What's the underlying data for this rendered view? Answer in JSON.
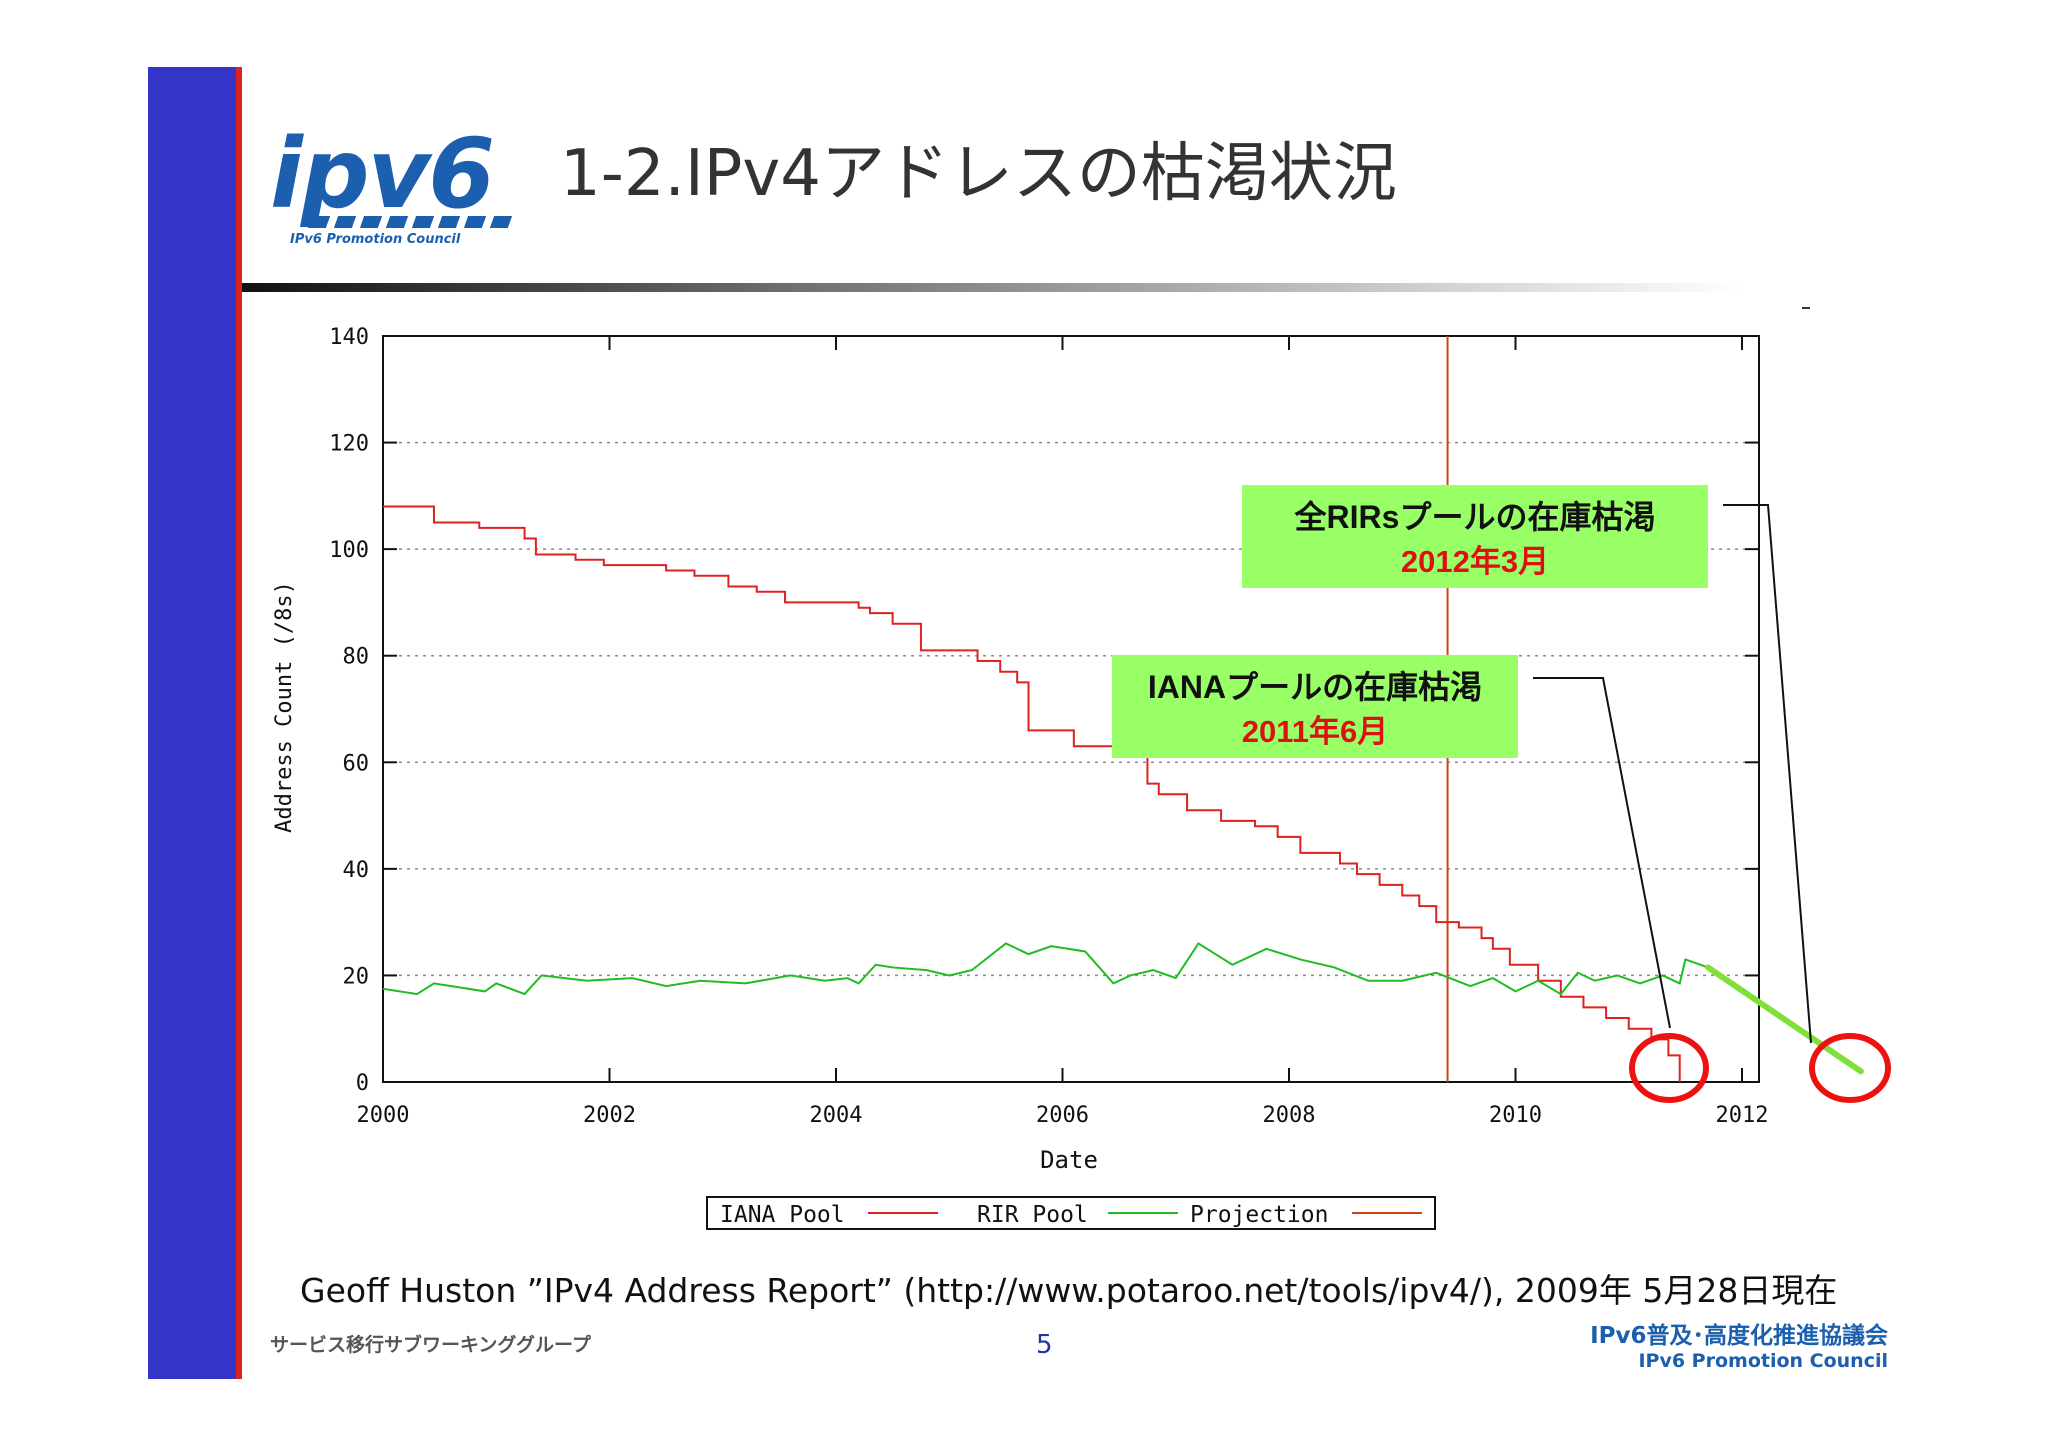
{
  "slide": {
    "title": "1-2.IPv4アドレスの枯渇状況",
    "citation": "Geoff Huston ”IPv4 Address Report” (http://www.potaroo.net/tools/ipv4/), 2009年 5月28日現在",
    "footer_left": "サービス移行サブワーキンググループ",
    "page_number": "5",
    "footer_org_ja": "IPv6普及･高度化推進協議会",
    "footer_org_en": "IPv6 Promotion  Council"
  },
  "logo": {
    "wordmark": "ipv6",
    "subtitle": "IPv6 Promotion Council"
  },
  "colors": {
    "sidebar_blue": "#3434c9",
    "sidebar_red": "#dd2222",
    "iana": "#dd2222",
    "rir": "#22bb22",
    "projection": "#cc4411",
    "projection_extension": "#7fe03a",
    "callout_bg": "#99ff66",
    "callout_date": "#dd1111",
    "circle": "#ee1111"
  },
  "chart_data": {
    "type": "line",
    "title": "",
    "xlabel": "Date",
    "ylabel": "Address Count (/8s)",
    "xlim": [
      2000,
      2012.15
    ],
    "ylim": [
      0,
      140
    ],
    "x_ticks": [
      "2000",
      "2002",
      "2004",
      "2006",
      "2008",
      "2010",
      "2012"
    ],
    "y_ticks": [
      "0",
      "20",
      "40",
      "60",
      "80",
      "100",
      "120",
      "140"
    ],
    "grid": "horizontal dotted",
    "legend_position": "bottom-center",
    "series": [
      {
        "name": "IANA Pool",
        "style": "step",
        "x": [
          2000,
          2000.45,
          2000.85,
          2001.25,
          2001.35,
          2001.7,
          2001.95,
          2002.4,
          2002.5,
          2002.75,
          2003.05,
          2003.3,
          2003.55,
          2003.95,
          2004.2,
          2004.3,
          2004.5,
          2004.75,
          2005.25,
          2005.45,
          2005.6,
          2005.7,
          2006.1,
          2006.45,
          2006.75,
          2006.85,
          2007.1,
          2007.4,
          2007.7,
          2007.9,
          2008.1,
          2008.45,
          2008.6,
          2008.8,
          2009.0,
          2009.15,
          2009.3,
          2009.5,
          2009.7,
          2009.8,
          2009.95,
          2010.2,
          2010.4,
          2010.6,
          2010.8,
          2011.0,
          2011.2,
          2011.35,
          2011.45,
          2011.45
        ],
        "y": [
          108,
          105,
          104,
          102,
          99,
          98,
          97,
          97,
          96,
          95,
          93,
          92,
          90,
          90,
          89,
          88,
          86,
          81,
          79,
          77,
          75,
          66,
          63,
          61,
          56,
          54,
          51,
          49,
          48,
          46,
          43,
          41,
          39,
          37,
          35,
          33,
          30,
          29,
          27,
          25,
          22,
          19,
          16,
          14,
          12,
          10,
          8,
          5,
          5,
          0
        ]
      },
      {
        "name": "RIR Pool",
        "style": "line",
        "x": [
          2000,
          2000.3,
          2000.45,
          2000.9,
          2001.0,
          2001.25,
          2001.4,
          2001.8,
          2002.2,
          2002.5,
          2002.8,
          2003.2,
          2003.6,
          2003.9,
          2004.1,
          2004.2,
          2004.35,
          2004.5,
          2004.8,
          2005.0,
          2005.2,
          2005.5,
          2005.7,
          2005.9,
          2006.2,
          2006.45,
          2006.6,
          2006.8,
          2007.0,
          2007.2,
          2007.5,
          2007.8,
          2008.1,
          2008.4,
          2008.7,
          2009.0,
          2009.3,
          2009.6,
          2009.8,
          2010.0,
          2010.2,
          2010.4,
          2010.55,
          2010.7,
          2010.9,
          2011.1,
          2011.3,
          2011.45,
          2011.5,
          2011.7
        ],
        "y": [
          17.5,
          16.5,
          18.5,
          17,
          18.5,
          16.5,
          20,
          19,
          19.5,
          18,
          19,
          18.5,
          20,
          19,
          19.5,
          18.5,
          22,
          21.5,
          21,
          20,
          21,
          26,
          24,
          25.5,
          24.5,
          18.5,
          20,
          21,
          19.5,
          26,
          22,
          25,
          23,
          21.5,
          19,
          19,
          20.5,
          18,
          19.5,
          17,
          19,
          16.5,
          20.5,
          19,
          20,
          18.5,
          20,
          18.5,
          23,
          21.5
        ]
      },
      {
        "name": "Projection",
        "style": "vline",
        "x": [
          2009.4
        ]
      }
    ],
    "projection_extension": {
      "x": [
        2011.7,
        2013.05
      ],
      "y": [
        21.5,
        2
      ]
    },
    "annotations": [
      {
        "title": "全RIRsプールの在庫枯渇",
        "date": "2012年3月"
      },
      {
        "title": "IANAプールの在庫枯渇",
        "date": "2011年6月"
      }
    ]
  }
}
